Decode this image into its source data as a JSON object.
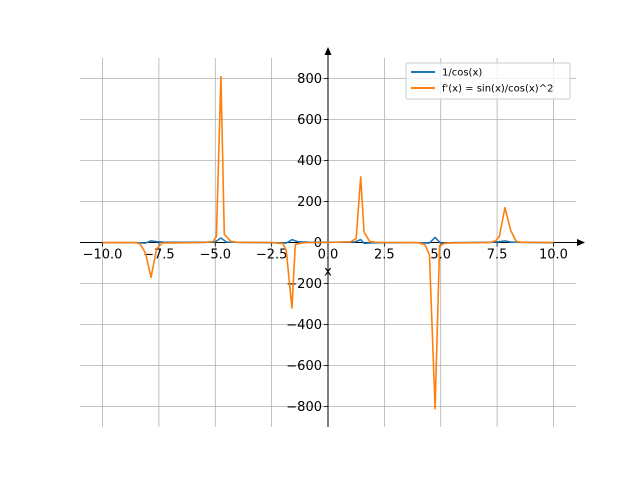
{
  "chart_data": {
    "type": "line",
    "title": "",
    "xlabel": "x",
    "ylabel": "",
    "xlim": [
      -11,
      11
    ],
    "ylim": [
      -900,
      900
    ],
    "grid": true,
    "spines": "center",
    "legend_position": "top-right",
    "xticks": [
      -10.0,
      -7.5,
      -5.0,
      -2.5,
      0.0,
      2.5,
      5.0,
      7.5,
      10.0
    ],
    "xtick_labels": [
      "−10.0",
      "−7.5",
      "−5.0",
      "−2.5",
      "0.0",
      "2.5",
      "5.0",
      "7.5",
      "10.0"
    ],
    "yticks": [
      -800,
      -600,
      -400,
      -200,
      0,
      200,
      400,
      600,
      800
    ],
    "ytick_labels": [
      "−800",
      "−600",
      "−400",
      "−200",
      "0",
      "200",
      "400",
      "600",
      "800"
    ],
    "series": [
      {
        "name": "1/cos(x)",
        "color": "#1f77b4",
        "x": [
          -10,
          -8.5,
          -8.1,
          -7.85,
          -7.6,
          -7.2,
          -5.5,
          -5.0,
          -4.75,
          -4.5,
          -4.0,
          -2.5,
          -1.85,
          -1.6,
          -1.35,
          -0.8,
          0,
          1.2,
          1.45,
          1.6,
          1.85,
          2.5,
          4.0,
          4.5,
          4.75,
          5.0,
          5.5,
          7.2,
          7.6,
          7.85,
          8.1,
          8.5,
          10
        ],
        "y": [
          -1,
          -1,
          -3,
          8,
          4,
          1,
          1,
          3,
          22,
          2,
          1,
          -1,
          -3,
          14,
          4,
          1,
          1,
          3,
          14,
          -4,
          -2,
          -1,
          -1,
          -3,
          25,
          -4,
          -1,
          1,
          4,
          8,
          2,
          1,
          -1
        ]
      },
      {
        "name": "f'(x) = sin(x)/cos(x)^2",
        "color": "#ff7f0e",
        "x": [
          -10,
          -8.6,
          -8.35,
          -8.1,
          -7.85,
          -7.6,
          -7.35,
          -5.5,
          -5.1,
          -4.95,
          -4.75,
          -4.6,
          -4.3,
          -4.0,
          -2.5,
          -2.0,
          -1.85,
          -1.6,
          -1.45,
          -1.2,
          -0.8,
          0,
          1.0,
          1.25,
          1.45,
          1.6,
          1.85,
          2.1,
          2.5,
          4.0,
          4.3,
          4.5,
          4.75,
          4.95,
          5.2,
          7.2,
          7.45,
          7.6,
          7.85,
          8.1,
          8.35,
          8.6,
          10
        ],
        "y": [
          -1,
          0,
          -5,
          -50,
          -170,
          -30,
          -3,
          0,
          4,
          30,
          810,
          40,
          5,
          1,
          0,
          -5,
          -40,
          -320,
          -10,
          -3,
          0,
          0,
          3,
          20,
          320,
          50,
          5,
          1,
          0,
          -1,
          -10,
          -60,
          -810,
          -15,
          -3,
          0,
          10,
          30,
          170,
          60,
          5,
          1,
          0
        ]
      }
    ]
  }
}
